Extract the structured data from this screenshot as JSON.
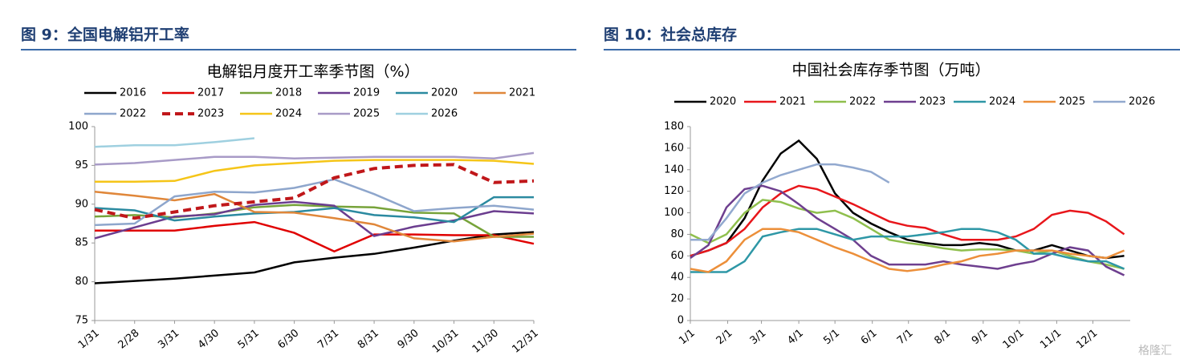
{
  "chart_data": [
    {
      "type": "line",
      "caption": "图 9：全国电解铝开工率",
      "title": "电解铝月度开工率季节图（%）",
      "categories": [
        "1/31",
        "2/28",
        "3/31",
        "4/30",
        "5/31",
        "6/30",
        "7/31",
        "8/31",
        "9/30",
        "10/31",
        "11/30",
        "12/31"
      ],
      "ylim": [
        75,
        100
      ],
      "yticks": [
        75,
        80,
        85,
        90,
        95,
        100
      ],
      "series": [
        {
          "name": "2016",
          "color": "#000000",
          "values": [
            79.8,
            80.1,
            80.4,
            80.8,
            81.2,
            82.5,
            83.1,
            83.6,
            84.4,
            85.3,
            86.1,
            86.4
          ]
        },
        {
          "name": "2017",
          "color": "#e00000",
          "values": [
            86.6,
            86.6,
            86.6,
            87.2,
            87.7,
            86.3,
            83.9,
            86.1,
            86.1,
            86.0,
            86.0,
            84.9
          ]
        },
        {
          "name": "2018",
          "color": "#77a33a",
          "values": [
            88.4,
            88.6,
            88.3,
            88.8,
            89.6,
            89.9,
            89.7,
            89.6,
            88.9,
            88.8,
            85.8,
            85.8
          ]
        },
        {
          "name": "2019",
          "color": "#6b3d8f",
          "values": [
            85.6,
            87.0,
            88.4,
            88.7,
            89.9,
            90.3,
            89.8,
            85.9,
            87.1,
            87.9,
            89.1,
            88.8
          ]
        },
        {
          "name": "2020",
          "color": "#2b8aa0",
          "values": [
            89.5,
            89.2,
            87.9,
            88.4,
            88.8,
            89.0,
            89.5,
            88.6,
            88.3,
            87.7,
            90.9,
            90.9
          ]
        },
        {
          "name": "2021",
          "color": "#e0873a",
          "values": [
            91.6,
            91.1,
            90.5,
            91.3,
            89.0,
            88.9,
            88.2,
            87.4,
            85.6,
            85.2,
            85.8,
            86.2
          ]
        },
        {
          "name": "2022",
          "color": "#8ea6cc",
          "values": [
            87.3,
            87.5,
            91.0,
            91.6,
            91.5,
            92.1,
            93.2,
            91.3,
            89.1,
            89.5,
            89.8,
            89.3
          ]
        },
        {
          "name": "2023",
          "color": "#c0171a",
          "dashed": true,
          "values": [
            89.3,
            88.2,
            89.0,
            89.8,
            90.3,
            90.8,
            93.4,
            94.6,
            95.0,
            95.1,
            92.8,
            93.0
          ]
        },
        {
          "name": "2024",
          "color": "#f5c518",
          "values": [
            92.9,
            92.9,
            93.0,
            94.3,
            95.0,
            95.3,
            95.6,
            95.7,
            95.7,
            95.7,
            95.6,
            95.2
          ]
        },
        {
          "name": "2025",
          "color": "#a89bc7",
          "values": [
            95.1,
            95.3,
            95.7,
            96.1,
            96.1,
            95.9,
            96.0,
            96.1,
            96.1,
            96.1,
            95.9,
            96.6
          ]
        },
        {
          "name": "2026",
          "color": "#9fd0e0",
          "values": [
            97.4,
            97.6,
            97.6,
            98.0,
            98.5,
            null,
            null,
            null,
            null,
            null,
            null,
            null
          ]
        }
      ]
    },
    {
      "type": "line",
      "caption": "图 10：社会总库存",
      "title": "中国社会库存季节图（万吨）",
      "x": [
        1,
        16,
        31,
        46,
        61,
        76,
        91,
        106,
        121,
        136,
        151,
        166,
        181,
        196,
        211,
        226,
        241,
        256,
        271,
        286,
        301,
        316,
        331,
        346,
        361
      ],
      "xlim": [
        1,
        366
      ],
      "xticks": [
        {
          "value": 1,
          "label": "1/1"
        },
        {
          "value": 32,
          "label": "2/1"
        },
        {
          "value": 60,
          "label": "3/1"
        },
        {
          "value": 91,
          "label": "4/1"
        },
        {
          "value": 121,
          "label": "5/1"
        },
        {
          "value": 152,
          "label": "6/1"
        },
        {
          "value": 182,
          "label": "7/1"
        },
        {
          "value": 213,
          "label": "8/1"
        },
        {
          "value": 244,
          "label": "9/1"
        },
        {
          "value": 274,
          "label": "10/1"
        },
        {
          "value": 305,
          "label": "11/1"
        },
        {
          "value": 335,
          "label": "12/1"
        }
      ],
      "ylim": [
        0,
        180
      ],
      "yticks": [
        0,
        20,
        40,
        60,
        80,
        100,
        120,
        140,
        160,
        180
      ],
      "series": [
        {
          "name": "2020",
          "color": "#000000",
          "values": [
            60,
            65,
            72,
            95,
            130,
            155,
            167,
            150,
            118,
            100,
            90,
            82,
            75,
            72,
            70,
            70,
            72,
            70,
            65,
            65,
            70,
            65,
            60,
            58,
            60
          ]
        },
        {
          "name": "2021",
          "color": "#e8161b",
          "values": [
            60,
            65,
            72,
            85,
            105,
            118,
            125,
            122,
            115,
            108,
            100,
            92,
            88,
            86,
            80,
            75,
            75,
            75,
            78,
            85,
            98,
            102,
            100,
            92,
            80
          ]
        },
        {
          "name": "2022",
          "color": "#8fbf4d",
          "values": [
            80,
            72,
            80,
            100,
            112,
            110,
            104,
            100,
            102,
            95,
            85,
            75,
            72,
            70,
            67,
            65,
            66,
            66,
            65,
            62,
            65,
            60,
            55,
            52,
            48
          ]
        },
        {
          "name": "2023",
          "color": "#6e3f8f",
          "values": [
            58,
            70,
            105,
            122,
            125,
            120,
            108,
            95,
            85,
            75,
            60,
            52,
            52,
            52,
            55,
            52,
            50,
            48,
            52,
            55,
            62,
            68,
            65,
            50,
            42
          ]
        },
        {
          "name": "2024",
          "color": "#2e97a6",
          "values": [
            45,
            45,
            45,
            55,
            78,
            82,
            85,
            85,
            80,
            75,
            78,
            78,
            78,
            80,
            82,
            85,
            85,
            82,
            75,
            62,
            62,
            58,
            55,
            55,
            48
          ]
        },
        {
          "name": "2025",
          "color": "#ec8f3a",
          "values": [
            48,
            45,
            55,
            75,
            85,
            85,
            82,
            75,
            68,
            62,
            55,
            48,
            46,
            48,
            52,
            55,
            60,
            62,
            65,
            65,
            65,
            62,
            60,
            58,
            65
          ]
        },
        {
          "name": "2026",
          "color": "#92a9cf",
          "values": [
            75,
            75,
            95,
            118,
            128,
            135,
            140,
            145,
            145,
            142,
            138,
            128,
            null,
            null,
            null,
            null,
            null,
            null,
            null,
            null,
            null,
            null,
            null,
            null,
            null
          ]
        }
      ]
    }
  ],
  "watermark": "格隆汇"
}
